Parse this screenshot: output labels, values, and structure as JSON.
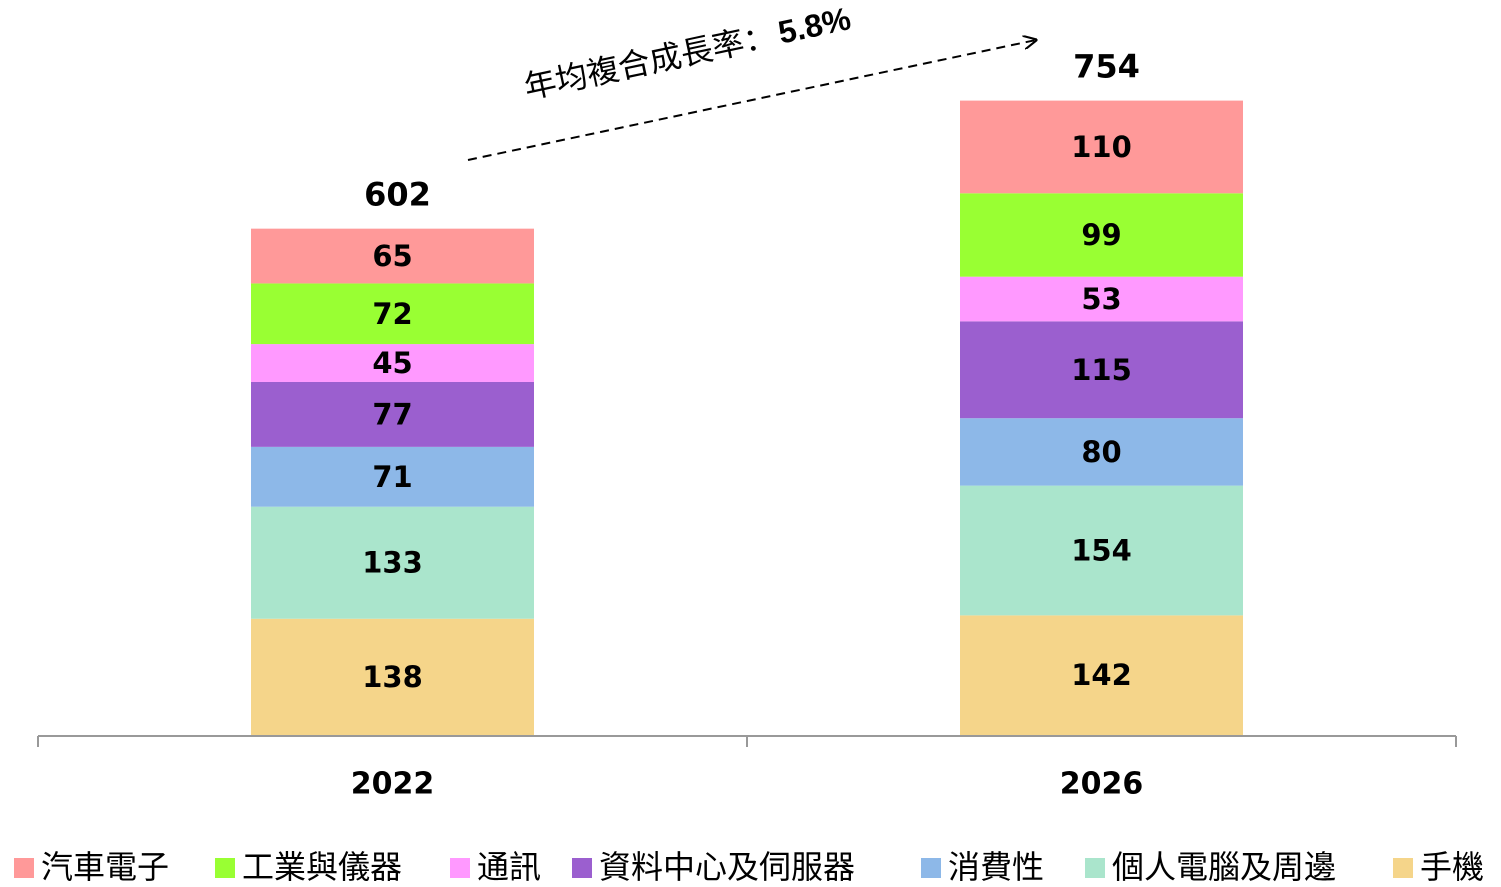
{
  "chart_data": {
    "type": "stacked_bar",
    "annotation": {
      "text": "年均複合成長率：",
      "rate": "5.8%"
    },
    "categories": [
      "2022",
      "2026"
    ],
    "totals": [
      602,
      754
    ],
    "ylim": [
      0,
      800
    ],
    "series": [
      {
        "name": "汽車電子",
        "color": "#ff9999",
        "values": [
          65,
          110
        ]
      },
      {
        "name": "工業與儀器",
        "color": "#99ff33",
        "values": [
          72,
          99
        ]
      },
      {
        "name": "通訊",
        "color": "#ff99ff",
        "values": [
          45,
          53
        ]
      },
      {
        "name": "資料中心及伺服器",
        "color": "#9b5fcf",
        "values": [
          77,
          115
        ]
      },
      {
        "name": "消費性",
        "color": "#8db8e8",
        "values": [
          71,
          80
        ]
      },
      {
        "name": "個人電腦及周邊",
        "color": "#aae5cc",
        "values": [
          133,
          154
        ]
      },
      {
        "name": "手機",
        "color": "#f5d58a",
        "values": [
          138,
          142
        ]
      }
    ]
  }
}
